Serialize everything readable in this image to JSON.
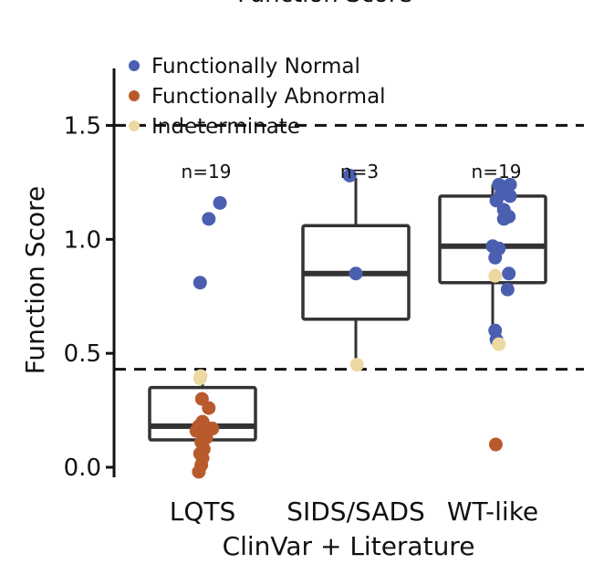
{
  "chart_data": {
    "type": "box-strip",
    "title": "Function Score",
    "xlabel": "ClinVar + Literature",
    "ylabel": "Function Score",
    "ylim": [
      -0.04,
      1.75
    ],
    "yticks": [
      0.0,
      0.5,
      1.0,
      1.5
    ],
    "ytick_labels": [
      "0.0",
      "0.5",
      "1.0",
      "1.5"
    ],
    "thresholds": [
      1.5,
      0.43
    ],
    "legend": {
      "placement": "top-left",
      "entries": [
        {
          "label": "Functionally Normal",
          "class": "normal"
        },
        {
          "label": "Functionally Abnormal",
          "class": "abnormal"
        },
        {
          "label": "Indeterminate",
          "class": "indeterminate"
        }
      ]
    },
    "colors": {
      "normal": "#4a5fb0",
      "abnormal": "#b95a2d",
      "indeterminate": "#ecd9a2",
      "box": "#333333",
      "axis": "#111111"
    },
    "categories": [
      {
        "name": "LQTS",
        "n_label": "n=19",
        "box": {
          "q1": 0.12,
          "median": 0.18,
          "q3": 0.35,
          "whisker_low": -0.02,
          "whisker_high": 0.4
        },
        "points": [
          {
            "dx": -0.03,
            "y": 0.4,
            "class": "indeterminate"
          },
          {
            "dx": -0.04,
            "y": 0.39,
            "class": "indeterminate"
          },
          {
            "dx": -0.04,
            "y": 0.81,
            "class": "normal"
          },
          {
            "dx": 0.1,
            "y": 1.09,
            "class": "normal"
          },
          {
            "dx": 0.28,
            "y": 1.16,
            "class": "normal"
          },
          {
            "dx": -0.01,
            "y": 0.3,
            "class": "abnormal"
          },
          {
            "dx": 0.1,
            "y": 0.26,
            "class": "abnormal"
          },
          {
            "dx": 0.0,
            "y": 0.2,
            "class": "abnormal"
          },
          {
            "dx": -0.06,
            "y": 0.18,
            "class": "abnormal"
          },
          {
            "dx": 0.04,
            "y": 0.18,
            "class": "abnormal"
          },
          {
            "dx": 0.16,
            "y": 0.17,
            "class": "abnormal"
          },
          {
            "dx": -0.1,
            "y": 0.16,
            "class": "abnormal"
          },
          {
            "dx": 0.06,
            "y": 0.13,
            "class": "abnormal"
          },
          {
            "dx": -0.02,
            "y": 0.11,
            "class": "abnormal"
          },
          {
            "dx": 0.02,
            "y": 0.08,
            "class": "abnormal"
          },
          {
            "dx": -0.04,
            "y": 0.06,
            "class": "abnormal"
          },
          {
            "dx": 0.0,
            "y": 0.04,
            "class": "abnormal"
          },
          {
            "dx": -0.02,
            "y": 0.01,
            "class": "abnormal"
          },
          {
            "dx": -0.06,
            "y": -0.02,
            "class": "abnormal"
          }
        ]
      },
      {
        "name": "SIDS/SADS",
        "n_label": "n=3",
        "box": {
          "q1": 0.65,
          "median": 0.85,
          "q3": 1.06,
          "whisker_low": 0.45,
          "whisker_high": 1.27
        },
        "points": [
          {
            "dx": -0.1,
            "y": 1.28,
            "class": "normal"
          },
          {
            "dx": 0.0,
            "y": 0.85,
            "class": "normal"
          },
          {
            "dx": 0.02,
            "y": 0.45,
            "class": "indeterminate"
          }
        ]
      },
      {
        "name": "WT-like",
        "n_label": "n=19",
        "box": {
          "q1": 0.81,
          "median": 0.97,
          "q3": 1.19,
          "whisker_low": 0.54,
          "whisker_high": 1.24
        },
        "points": [
          {
            "dx": 0.1,
            "y": 1.24,
            "class": "normal"
          },
          {
            "dx": 0.28,
            "y": 1.24,
            "class": "normal"
          },
          {
            "dx": 0.2,
            "y": 1.22,
            "class": "normal"
          },
          {
            "dx": 0.14,
            "y": 1.2,
            "class": "normal"
          },
          {
            "dx": 0.28,
            "y": 1.19,
            "class": "normal"
          },
          {
            "dx": 0.06,
            "y": 1.17,
            "class": "normal"
          },
          {
            "dx": 0.18,
            "y": 1.13,
            "class": "normal"
          },
          {
            "dx": 0.26,
            "y": 1.1,
            "class": "normal"
          },
          {
            "dx": 0.18,
            "y": 1.09,
            "class": "normal"
          },
          {
            "dx": 0.0,
            "y": 0.97,
            "class": "normal"
          },
          {
            "dx": 0.1,
            "y": 0.96,
            "class": "normal"
          },
          {
            "dx": 0.04,
            "y": 0.92,
            "class": "normal"
          },
          {
            "dx": 0.26,
            "y": 0.85,
            "class": "normal"
          },
          {
            "dx": 0.04,
            "y": 0.84,
            "class": "indeterminate"
          },
          {
            "dx": 0.24,
            "y": 0.78,
            "class": "normal"
          },
          {
            "dx": 0.04,
            "y": 0.6,
            "class": "normal"
          },
          {
            "dx": 0.06,
            "y": 0.56,
            "class": "normal"
          },
          {
            "dx": 0.1,
            "y": 0.54,
            "class": "indeterminate"
          },
          {
            "dx": 0.05,
            "y": 0.1,
            "class": "abnormal"
          }
        ]
      }
    ]
  }
}
